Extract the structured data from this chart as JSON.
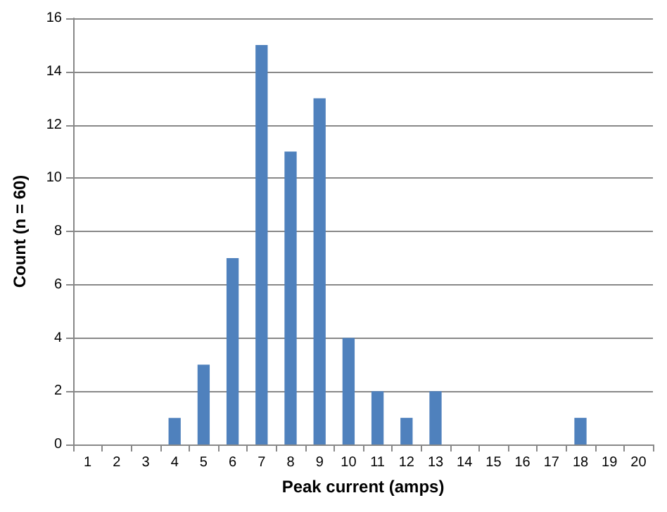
{
  "chart_data": {
    "type": "bar",
    "xlabel": "Peak current (amps)",
    "ylabel": "Count (n = 60)",
    "categories": [
      "1",
      "2",
      "3",
      "4",
      "5",
      "6",
      "7",
      "8",
      "9",
      "10",
      "11",
      "12",
      "13",
      "14",
      "15",
      "16",
      "17",
      "18",
      "19",
      "20"
    ],
    "values": [
      0,
      0,
      0,
      1,
      3,
      7,
      15,
      11,
      13,
      4,
      2,
      1,
      2,
      0,
      0,
      0,
      0,
      1,
      0,
      0
    ],
    "color": "#4f81bd",
    "ylim": [
      0,
      16
    ],
    "yticks": [
      0,
      2,
      4,
      6,
      8,
      10,
      12,
      14,
      16
    ],
    "grid": "y"
  }
}
